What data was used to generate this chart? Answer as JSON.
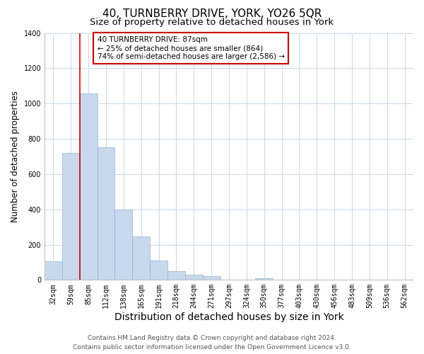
{
  "title": "40, TURNBERRY DRIVE, YORK, YO26 5QR",
  "subtitle": "Size of property relative to detached houses in York",
  "xlabel": "Distribution of detached houses by size in York",
  "ylabel": "Number of detached properties",
  "bar_values": [
    105,
    720,
    1055,
    750,
    400,
    245,
    110,
    48,
    28,
    22,
    0,
    0,
    10,
    0,
    0,
    0,
    0,
    0,
    0,
    0,
    0
  ],
  "bar_labels": [
    "32sqm",
    "59sqm",
    "85sqm",
    "112sqm",
    "138sqm",
    "165sqm",
    "191sqm",
    "218sqm",
    "244sqm",
    "271sqm",
    "297sqm",
    "324sqm",
    "350sqm",
    "377sqm",
    "403sqm",
    "430sqm",
    "456sqm",
    "483sqm",
    "509sqm",
    "536sqm",
    "562sqm"
  ],
  "bar_color": "#c8d9ed",
  "bar_edge_color": "#8fb4d4",
  "vline_x": 2,
  "vline_color": "#cc0000",
  "ylim": [
    0,
    1400
  ],
  "yticks": [
    0,
    200,
    400,
    600,
    800,
    1000,
    1200,
    1400
  ],
  "annotation_text": "40 TURNBERRY DRIVE: 87sqm\n← 25% of detached houses are smaller (864)\n74% of semi-detached houses are larger (2,586) →",
  "annotation_box_color": "#ffffff",
  "annotation_box_edge_color": "#cc0000",
  "footer_line1": "Contains HM Land Registry data © Crown copyright and database right 2024.",
  "footer_line2": "Contains public sector information licensed under the Open Government Licence v3.0.",
  "background_color": "#ffffff",
  "grid_color": "#c8d8e8",
  "title_fontsize": 11,
  "subtitle_fontsize": 9.5,
  "ylabel_fontsize": 8.5,
  "xlabel_fontsize": 10,
  "tick_fontsize": 7,
  "annotation_fontsize": 7.5,
  "footer_fontsize": 6.5
}
